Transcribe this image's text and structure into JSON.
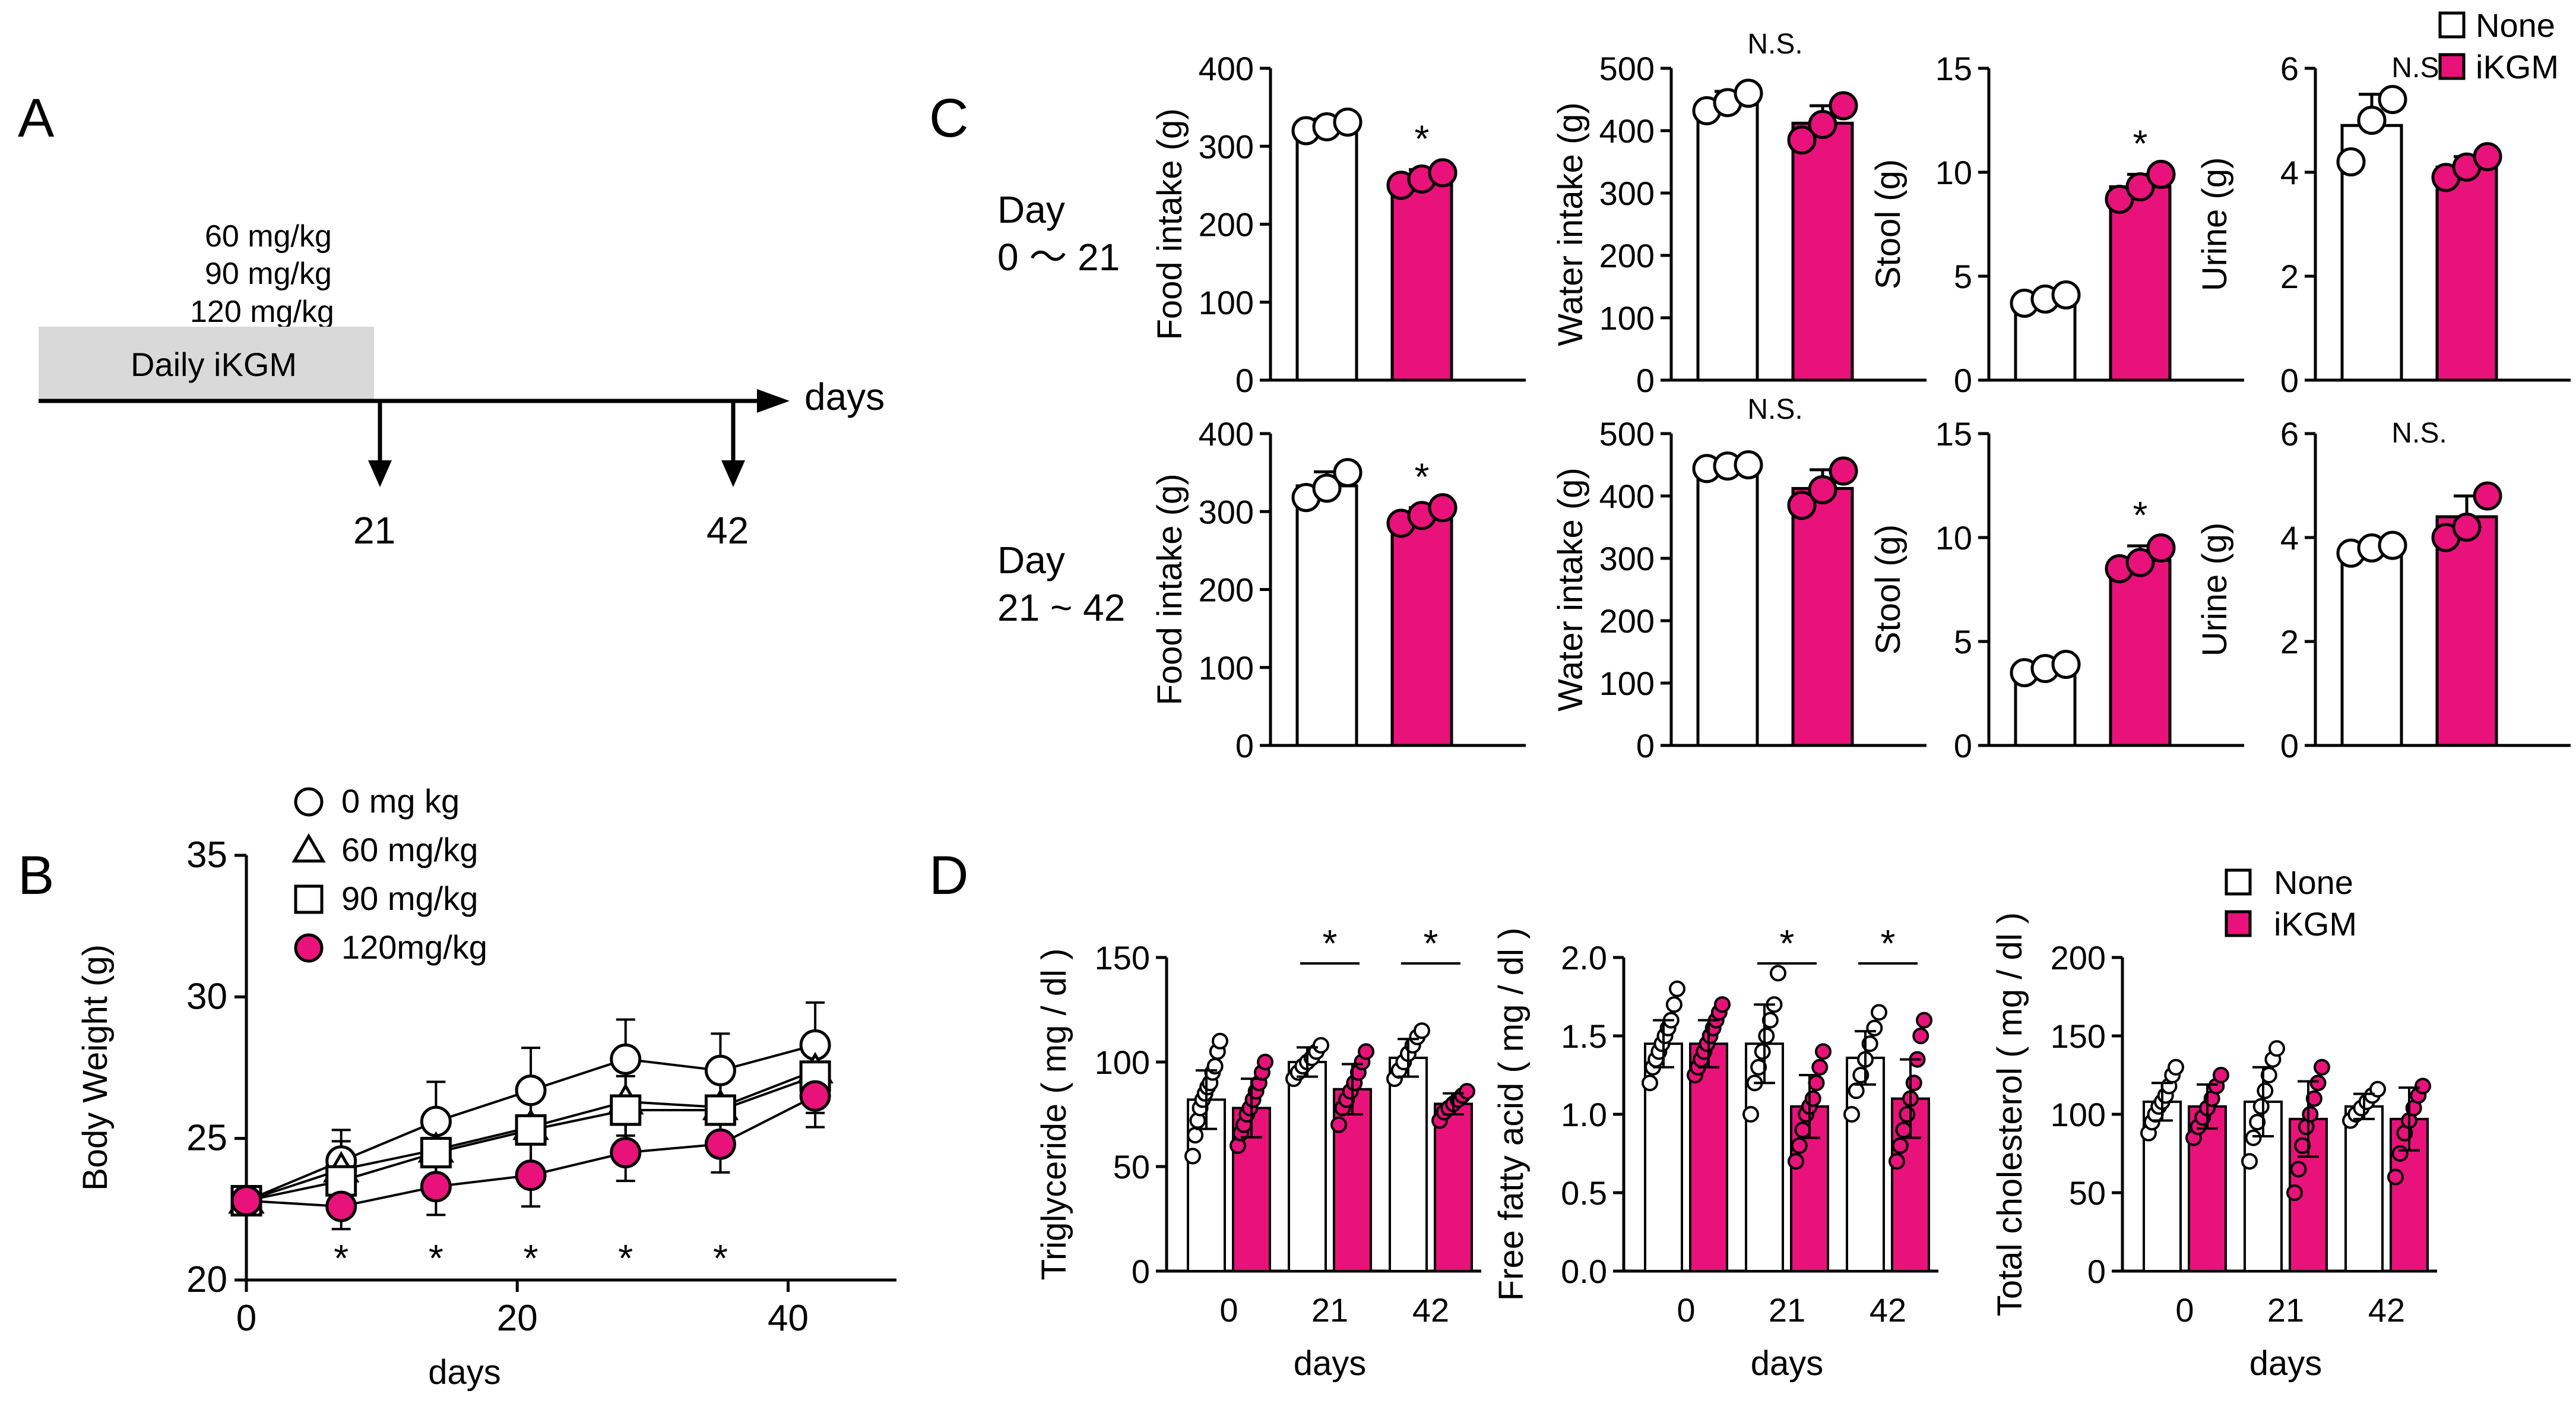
{
  "colors": {
    "none": "#ffffff",
    "ikgm": "#e8127a",
    "ink": "#000000",
    "band": "#d9d9d9"
  },
  "panel_a": {
    "letter": "A",
    "doses": [
      "60 mg/kg",
      "90 mg/kg",
      "120 mg/kg"
    ],
    "band_label": "Daily iKGM",
    "axis_label": "days",
    "marks": [
      "21",
      "42"
    ]
  },
  "panel_c_letter": "C",
  "panel_d_letter": "D",
  "chart_data": [
    {
      "id": "B",
      "type": "line",
      "letter": "B",
      "title": "",
      "xlabel": "days",
      "ylabel": "Body Weight (g)",
      "xlim": [
        0,
        48
      ],
      "ylim": [
        20,
        35
      ],
      "xticks": [
        "0",
        "20",
        "40"
      ],
      "yticks": [
        "20",
        "25",
        "30",
        "35"
      ],
      "x": [
        0,
        7,
        14,
        21,
        28,
        35,
        42
      ],
      "legend": [
        "0 mg kg",
        "60 mg/kg",
        "90 mg/kg",
        "120mg/kg"
      ],
      "series": [
        {
          "name": "0 mg kg",
          "marker": "circle",
          "values": [
            22.8,
            24.2,
            25.6,
            26.7,
            27.8,
            27.4,
            28.3
          ],
          "err": [
            0.4,
            1.1,
            1.4,
            1.5,
            1.4,
            1.3,
            1.5
          ]
        },
        {
          "name": "60 mg/kg",
          "marker": "triangle",
          "values": [
            22.8,
            23.9,
            24.6,
            25.4,
            26.3,
            26.1,
            27.4
          ],
          "err": [
            0.4,
            1.0,
            1.2,
            1.3,
            1.2,
            1.2,
            1.3
          ]
        },
        {
          "name": "90 mg/kg",
          "marker": "square",
          "values": [
            22.8,
            23.5,
            24.5,
            25.3,
            26.0,
            26.0,
            27.2
          ],
          "err": [
            0.4,
            1.0,
            1.2,
            1.3,
            1.2,
            1.2,
            1.3
          ]
        },
        {
          "name": "120mg/kg",
          "marker": "filled",
          "values": [
            22.8,
            22.6,
            23.3,
            23.7,
            24.5,
            24.8,
            26.5
          ],
          "err": [
            0.4,
            0.8,
            1.0,
            1.1,
            1.0,
            1.0,
            1.1
          ]
        }
      ],
      "annotations": [
        {
          "x": 7,
          "text": "*"
        },
        {
          "x": 14,
          "text": "*"
        },
        {
          "x": 21,
          "text": "*"
        },
        {
          "x": 28,
          "text": "*"
        },
        {
          "x": 35,
          "text": "*"
        }
      ]
    },
    {
      "id": "C-food-1",
      "type": "bar",
      "group": "Day 0 ~ 21",
      "row_label": [
        "Day",
        "0 〜 21"
      ],
      "ylabel": "Food intake (g)",
      "ylim": [
        0,
        400
      ],
      "yticks": [
        "0",
        "100",
        "200",
        "300",
        "400"
      ],
      "categories": [
        "None",
        "iKGM"
      ],
      "values": [
        325,
        258
      ],
      "err": [
        10,
        12
      ],
      "points": [
        [
          320,
          325,
          331
        ],
        [
          250,
          258,
          266
        ]
      ],
      "annotation": "*"
    },
    {
      "id": "C-water-1",
      "type": "bar",
      "group": "Day 0 ~ 21",
      "ylabel": "Water intake (g)",
      "ylim": [
        0,
        500
      ],
      "yticks": [
        "0",
        "100",
        "200",
        "300",
        "400",
        "500"
      ],
      "categories": [
        "None",
        "iKGM"
      ],
      "values": [
        445,
        412
      ],
      "err": [
        18,
        28
      ],
      "points": [
        [
          432,
          445,
          460
        ],
        [
          385,
          410,
          440
        ]
      ],
      "annotation": "N.S."
    },
    {
      "id": "C-stool-1",
      "type": "bar",
      "group": "Day 0 ~ 21",
      "ylabel": "Stool (g)",
      "ylim": [
        0,
        15
      ],
      "yticks": [
        "0",
        "5",
        "10",
        "15"
      ],
      "categories": [
        "None",
        "iKGM"
      ],
      "values": [
        3.9,
        9.3
      ],
      "err": [
        0.3,
        0.6
      ],
      "points": [
        [
          3.7,
          3.9,
          4.1
        ],
        [
          8.7,
          9.3,
          9.9
        ]
      ],
      "annotation": "*"
    },
    {
      "id": "C-urine-1",
      "type": "bar",
      "group": "Day 0 ~ 21",
      "ylabel": "Urine (g)",
      "ylim": [
        0,
        6
      ],
      "yticks": [
        "0",
        "2",
        "4",
        "6"
      ],
      "categories": [
        "None",
        "iKGM"
      ],
      "values": [
        4.9,
        4.1
      ],
      "err": [
        0.6,
        0.2
      ],
      "points": [
        [
          4.2,
          5.0,
          5.4
        ],
        [
          3.9,
          4.1,
          4.3
        ]
      ],
      "annotation": "N.S.",
      "legend": [
        "None",
        "iKGM"
      ]
    },
    {
      "id": "C-food-2",
      "type": "bar",
      "group": "Day 21 ~ 42",
      "row_label": [
        "Day",
        "21 ~ 42"
      ],
      "ylabel": "Food intake (g)",
      "ylim": [
        0,
        400
      ],
      "yticks": [
        "0",
        "100",
        "200",
        "300",
        "400"
      ],
      "categories": [
        "None",
        "iKGM"
      ],
      "values": [
        333,
        295
      ],
      "err": [
        18,
        10
      ],
      "points": [
        [
          318,
          330,
          350
        ],
        [
          285,
          295,
          305
        ]
      ],
      "annotation": "*"
    },
    {
      "id": "C-water-2",
      "type": "bar",
      "group": "Day 21 ~ 42",
      "ylabel": "Water intake (g)",
      "ylim": [
        0,
        500
      ],
      "yticks": [
        "0",
        "100",
        "200",
        "300",
        "400",
        "500"
      ],
      "categories": [
        "None",
        "iKGM"
      ],
      "values": [
        447,
        412
      ],
      "err": [
        5,
        30
      ],
      "points": [
        [
          444,
          448,
          450
        ],
        [
          385,
          410,
          440
        ]
      ],
      "annotation": "N.S."
    },
    {
      "id": "C-stool-2",
      "type": "bar",
      "group": "Day 21 ~ 42",
      "ylabel": "Stool (g)",
      "ylim": [
        0,
        15
      ],
      "yticks": [
        "0",
        "5",
        "10",
        "15"
      ],
      "categories": [
        "None",
        "iKGM"
      ],
      "values": [
        3.7,
        8.9
      ],
      "err": [
        0.3,
        0.7
      ],
      "points": [
        [
          3.5,
          3.7,
          3.9
        ],
        [
          8.5,
          8.8,
          9.5
        ]
      ],
      "annotation": "*"
    },
    {
      "id": "C-urine-2",
      "type": "bar",
      "group": "Day 21 ~ 42",
      "ylabel": "Urine (g)",
      "ylim": [
        0,
        6
      ],
      "yticks": [
        "0",
        "2",
        "4",
        "6"
      ],
      "categories": [
        "None",
        "iKGM"
      ],
      "values": [
        3.8,
        4.4
      ],
      "err": [
        0.1,
        0.4
      ],
      "points": [
        [
          3.7,
          3.8,
          3.85
        ],
        [
          4.0,
          4.2,
          4.8
        ]
      ],
      "annotation": "N.S."
    },
    {
      "id": "D-tg",
      "type": "bar",
      "ylabel": "Triglyceride ( mg / dl )",
      "xlabel": "days",
      "ylim": [
        0,
        150
      ],
      "yticks": [
        "0",
        "50",
        "100",
        "150"
      ],
      "categories": [
        "0",
        "21",
        "42"
      ],
      "series": [
        {
          "name": "None",
          "values": [
            82,
            100,
            102
          ],
          "err": [
            14,
            7,
            9
          ]
        },
        {
          "name": "iKGM",
          "values": [
            78,
            87,
            80
          ],
          "err": [
            14,
            12,
            5
          ]
        }
      ],
      "points": [
        [
          [
            55,
            65,
            72,
            78,
            82,
            85,
            88,
            90,
            95,
            98,
            105,
            110
          ],
          [
            60,
            66,
            70,
            75,
            78,
            82,
            86,
            90,
            95,
            100
          ],
          [
            92,
            95,
            98,
            100,
            102,
            105,
            108
          ],
          [
            70,
            78,
            82,
            86,
            90,
            95,
            100,
            105
          ],
          [
            92,
            96,
            100,
            104,
            108,
            112,
            115
          ],
          [
            72,
            76,
            78,
            80,
            82,
            84,
            86
          ]
        ]
      ],
      "brackets": [
        {
          "category": "21",
          "text": "*"
        },
        {
          "category": "42",
          "text": "*"
        }
      ]
    },
    {
      "id": "D-ffa",
      "type": "bar",
      "ylabel": "Free fatty acid ( mg / dl )",
      "xlabel": "days",
      "ylim": [
        0,
        2
      ],
      "yticks": [
        "0.0",
        "0.5",
        "1.0",
        "1.5",
        "2.0"
      ],
      "categories": [
        "0",
        "21",
        "42"
      ],
      "series": [
        {
          "name": "None",
          "values": [
            1.45,
            1.45,
            1.36
          ],
          "err": [
            0.15,
            0.25,
            0.17
          ]
        },
        {
          "name": "iKGM",
          "values": [
            1.45,
            1.05,
            1.1
          ],
          "err": [
            0.15,
            0.2,
            0.25
          ]
        }
      ],
      "points": [
        [
          [
            1.2,
            1.3,
            1.35,
            1.4,
            1.45,
            1.5,
            1.55,
            1.6,
            1.7,
            1.8
          ],
          [
            1.25,
            1.3,
            1.35,
            1.4,
            1.45,
            1.5,
            1.55,
            1.6,
            1.65,
            1.7
          ],
          [
            1.0,
            1.2,
            1.3,
            1.4,
            1.5,
            1.6,
            1.7,
            1.9
          ],
          [
            0.7,
            0.8,
            0.9,
            1.0,
            1.05,
            1.1,
            1.2,
            1.3,
            1.4
          ],
          [
            1.0,
            1.15,
            1.25,
            1.35,
            1.45,
            1.55,
            1.65
          ],
          [
            0.7,
            0.8,
            0.9,
            1.0,
            1.1,
            1.2,
            1.35,
            1.5,
            1.6
          ]
        ]
      ],
      "brackets": [
        {
          "category": "21",
          "text": "*"
        },
        {
          "category": "42",
          "text": "*"
        }
      ]
    },
    {
      "id": "D-tc",
      "type": "bar",
      "ylabel": "Total cholesterol ( mg / dl )",
      "xlabel": "days",
      "ylim": [
        0,
        200
      ],
      "yticks": [
        "0",
        "50",
        "100",
        "150",
        "200"
      ],
      "categories": [
        "0",
        "21",
        "42"
      ],
      "series": [
        {
          "name": "None",
          "values": [
            108,
            108,
            105
          ],
          "err": [
            12,
            22,
            8
          ]
        },
        {
          "name": "iKGM",
          "values": [
            105,
            97,
            97
          ],
          "err": [
            14,
            24,
            20
          ]
        }
      ],
      "points": [
        [
          [
            88,
            95,
            100,
            105,
            108,
            112,
            118,
            125,
            130
          ],
          [
            85,
            92,
            98,
            104,
            110,
            118,
            125
          ],
          [
            70,
            85,
            95,
            105,
            115,
            125,
            135,
            142
          ],
          [
            50,
            65,
            80,
            92,
            100,
            110,
            120,
            130
          ],
          [
            96,
            100,
            104,
            108,
            112,
            116
          ],
          [
            60,
            75,
            88,
            96,
            104,
            112,
            118
          ]
        ]
      ],
      "legend": [
        "None",
        "iKGM"
      ]
    }
  ]
}
